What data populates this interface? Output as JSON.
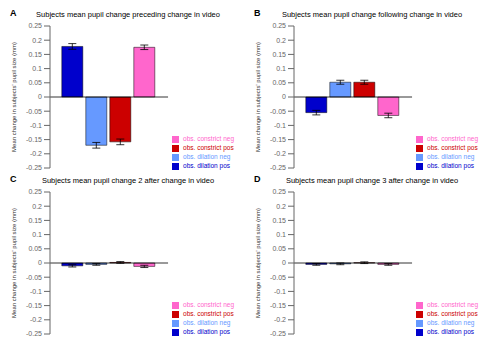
{
  "chart_data": [
    {
      "type": "bar",
      "title": "Subjects mean pupil change preceding change in video",
      "ylabel": "Mean change in subjects' pupil size (mm)",
      "annotations": [
        "A"
      ],
      "categories": [
        null
      ],
      "series": [
        {
          "name": "obs. dilation pos",
          "color": "#0000CC",
          "values": [
            0.178
          ],
          "errors": [
            0.01
          ]
        },
        {
          "name": "obs. dilation neg",
          "color": "#6699FF",
          "values": [
            -0.17
          ],
          "errors": [
            0.01
          ]
        },
        {
          "name": "obs. constrict pos",
          "color": "#CC0000",
          "values": [
            -0.158
          ],
          "errors": [
            0.01
          ]
        },
        {
          "name": "obs. constrict neg",
          "color": "#FF66CC",
          "values": [
            0.175
          ],
          "errors": [
            0.008
          ]
        }
      ],
      "ylim": [
        -0.25,
        0.25
      ],
      "yticks": [
        -0.25,
        -0.2,
        -0.15,
        -0.1,
        -0.05,
        0,
        0.05,
        0.1,
        0.15,
        0.2,
        0.25
      ],
      "grid": false,
      "legend": "lower right",
      "tick_labels": "y"
    },
    {
      "type": "bar",
      "title": "Subjects mean pupil change following change in video",
      "ylabel": "Mean change in subjects' pupil size (mm)",
      "annotations": [
        "B"
      ],
      "categories": [
        null
      ],
      "series": [
        {
          "name": "obs. dilation pos",
          "color": "#0000CC",
          "values": [
            -0.055
          ],
          "errors": [
            0.008
          ]
        },
        {
          "name": "obs. dilation neg",
          "color": "#6699FF",
          "values": [
            0.052
          ],
          "errors": [
            0.007
          ]
        },
        {
          "name": "obs. constrict pos",
          "color": "#CC0000",
          "values": [
            0.052
          ],
          "errors": [
            0.007
          ]
        },
        {
          "name": "obs. constrict neg",
          "color": "#FF66CC",
          "values": [
            -0.065
          ],
          "errors": [
            0.008
          ]
        }
      ],
      "ylim": [
        -0.25,
        0.25
      ],
      "yticks": [
        -0.25,
        -0.2,
        -0.15,
        -0.1,
        -0.05,
        0,
        0.05,
        0.1,
        0.15,
        0.2,
        0.25
      ],
      "grid": false,
      "legend": "lower right",
      "tick_labels": "y"
    },
    {
      "type": "bar",
      "title": "Subjects mean pupil change 2 after change in video",
      "ylabel": "Mean change in subjects' pupil size (mm)",
      "annotations": [
        "C"
      ],
      "categories": [
        null
      ],
      "series": [
        {
          "name": "obs. dilation pos",
          "color": "#0000CC",
          "values": [
            -0.01
          ],
          "errors": [
            0.004
          ]
        },
        {
          "name": "obs. dilation neg",
          "color": "#6699FF",
          "values": [
            -0.005
          ],
          "errors": [
            0.003
          ]
        },
        {
          "name": "obs. constrict pos",
          "color": "#CC0000",
          "values": [
            0.002
          ],
          "errors": [
            0.003
          ]
        },
        {
          "name": "obs. constrict neg",
          "color": "#FF66CC",
          "values": [
            -0.012
          ],
          "errors": [
            0.004
          ]
        }
      ],
      "ylim": [
        -0.25,
        0.25
      ],
      "yticks": [
        -0.25,
        -0.2,
        -0.15,
        -0.1,
        -0.05,
        0,
        0.05,
        0.1,
        0.15,
        0.2,
        0.25
      ],
      "grid": false,
      "legend": "lower right",
      "tick_labels": "y"
    },
    {
      "type": "bar",
      "title": "Subjects mean pupil change 3 after change in video",
      "ylabel": "Mean change in subjects' pupil size (mm)",
      "annotations": [
        "D"
      ],
      "categories": [
        null
      ],
      "series": [
        {
          "name": "obs. dilation pos",
          "color": "#0000CC",
          "values": [
            -0.005
          ],
          "errors": [
            0.003
          ]
        },
        {
          "name": "obs. dilation neg",
          "color": "#6699FF",
          "values": [
            -0.003
          ],
          "errors": [
            0.003
          ]
        },
        {
          "name": "obs. constrict pos",
          "color": "#CC0000",
          "values": [
            0.001
          ],
          "errors": [
            0.003
          ]
        },
        {
          "name": "obs. constrict neg",
          "color": "#FF66CC",
          "values": [
            -0.005
          ],
          "errors": [
            0.003
          ]
        }
      ],
      "ylim": [
        -0.25,
        0.25
      ],
      "yticks": [
        -0.25,
        -0.2,
        -0.15,
        -0.1,
        -0.05,
        0,
        0.05,
        0.1,
        0.15,
        0.2,
        0.25
      ],
      "grid": false,
      "legend": "lower right",
      "tick_labels": "y"
    }
  ]
}
